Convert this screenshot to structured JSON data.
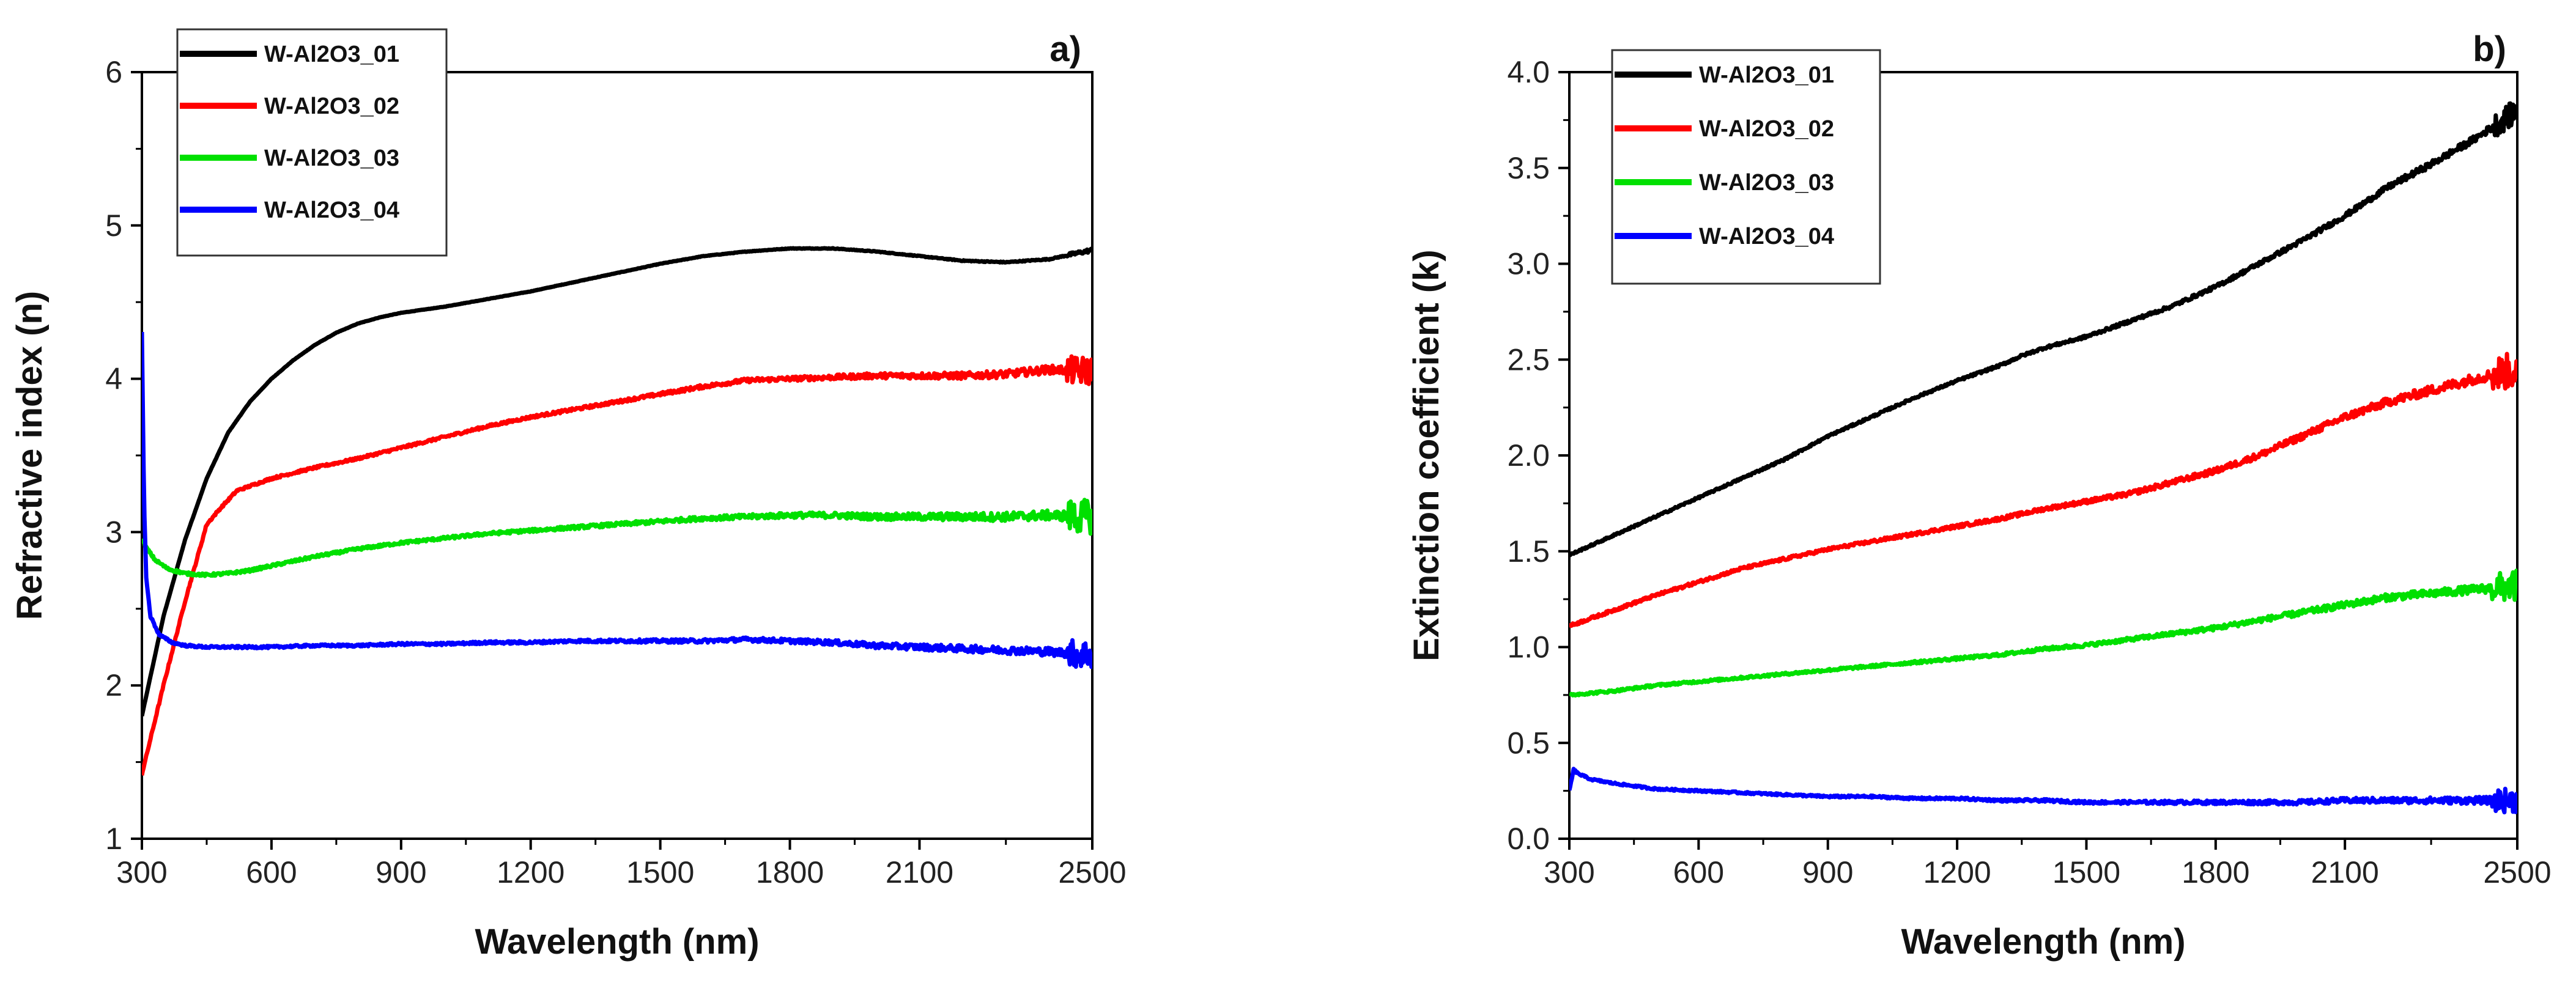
{
  "chart_data": [
    {
      "type": "line",
      "panel_label": "a)",
      "xlabel": "Wavelength (nm)",
      "ylabel": "Refractive index (n)",
      "xlim": [
        300,
        2500
      ],
      "ylim": [
        1,
        6
      ],
      "xticks": [
        "300",
        "600",
        "900",
        "1200",
        "1500",
        "1800",
        "2100",
        "2500"
      ],
      "yticks": [
        "1",
        "2",
        "3",
        "4",
        "5",
        "6"
      ],
      "legend_position": "top-left",
      "grid": false,
      "series": [
        {
          "name": "W-Al2O3_01",
          "color": "#000000",
          "x": [
            300,
            350,
            400,
            450,
            500,
            550,
            600,
            650,
            700,
            750,
            800,
            850,
            900,
            1000,
            1100,
            1200,
            1300,
            1400,
            1500,
            1600,
            1700,
            1800,
            1900,
            2000,
            2100,
            2200,
            2300,
            2400,
            2500
          ],
          "y": [
            1.8,
            2.45,
            2.95,
            3.35,
            3.65,
            3.85,
            4.0,
            4.12,
            4.22,
            4.3,
            4.36,
            4.4,
            4.43,
            4.47,
            4.52,
            4.57,
            4.63,
            4.69,
            4.75,
            4.8,
            4.83,
            4.85,
            4.85,
            4.83,
            4.8,
            4.77,
            4.76,
            4.78,
            4.84
          ]
        },
        {
          "name": "W-Al2O3_02",
          "color": "#ff0000",
          "x": [
            300,
            350,
            400,
            450,
            480,
            520,
            600,
            700,
            800,
            900,
            1000,
            1100,
            1200,
            1300,
            1400,
            1500,
            1600,
            1700,
            1800,
            1900,
            2000,
            2100,
            2200,
            2300,
            2400,
            2500
          ],
          "y": [
            1.42,
            2.0,
            2.55,
            3.05,
            3.15,
            3.27,
            3.35,
            3.42,
            3.48,
            3.55,
            3.62,
            3.69,
            3.75,
            3.8,
            3.85,
            3.9,
            3.95,
            3.99,
            4.0,
            4.01,
            4.02,
            4.02,
            4.02,
            4.03,
            4.06,
            4.05
          ]
        },
        {
          "name": "W-Al2O3_03",
          "color": "#00e000",
          "x": [
            300,
            310,
            330,
            360,
            400,
            450,
            500,
            550,
            600,
            700,
            800,
            900,
            1000,
            1100,
            1200,
            1300,
            1400,
            1500,
            1600,
            1700,
            1800,
            1900,
            2000,
            2100,
            2200,
            2300,
            2400,
            2500
          ],
          "y": [
            2.95,
            2.9,
            2.82,
            2.76,
            2.73,
            2.72,
            2.73,
            2.75,
            2.78,
            2.84,
            2.89,
            2.93,
            2.96,
            2.99,
            3.01,
            3.03,
            3.05,
            3.07,
            3.09,
            3.1,
            3.11,
            3.11,
            3.1,
            3.1,
            3.1,
            3.1,
            3.11,
            3.1
          ]
        },
        {
          "name": "W-Al2O3_04",
          "color": "#0000ff",
          "x": [
            300,
            305,
            310,
            320,
            340,
            370,
            400,
            450,
            500,
            600,
            700,
            800,
            900,
            1000,
            1100,
            1200,
            1300,
            1400,
            1500,
            1600,
            1700,
            1800,
            1900,
            2000,
            2100,
            2200,
            2300,
            2400,
            2500
          ],
          "y": [
            4.3,
            3.2,
            2.7,
            2.45,
            2.33,
            2.28,
            2.26,
            2.25,
            2.25,
            2.25,
            2.26,
            2.26,
            2.27,
            2.27,
            2.28,
            2.28,
            2.29,
            2.29,
            2.29,
            2.29,
            2.3,
            2.29,
            2.28,
            2.26,
            2.25,
            2.24,
            2.23,
            2.22,
            2.2
          ]
        }
      ]
    },
    {
      "type": "line",
      "panel_label": "b)",
      "xlabel": "Wavelength (nm)",
      "ylabel": "Extinction coefficient (k)",
      "xlim": [
        300,
        2500
      ],
      "ylim": [
        0,
        4
      ],
      "xticks": [
        "300",
        "600",
        "900",
        "1200",
        "1500",
        "1800",
        "2100",
        "2500"
      ],
      "yticks": [
        "0.0",
        "0.5",
        "1.0",
        "1.5",
        "2.0",
        "2.5",
        "3.0",
        "3.5",
        "4.0"
      ],
      "legend_position": "top-left",
      "grid": false,
      "series": [
        {
          "name": "W-Al2O3_01",
          "color": "#000000",
          "x": [
            300,
            400,
            500,
            600,
            700,
            800,
            900,
            1000,
            1100,
            1200,
            1300,
            1350,
            1400,
            1500,
            1600,
            1700,
            1800,
            1900,
            2000,
            2100,
            2200,
            2300,
            2400,
            2500
          ],
          "y": [
            1.48,
            1.58,
            1.68,
            1.78,
            1.88,
            1.98,
            2.1,
            2.2,
            2.3,
            2.39,
            2.47,
            2.52,
            2.56,
            2.62,
            2.7,
            2.78,
            2.88,
            3.0,
            3.12,
            3.25,
            3.4,
            3.52,
            3.65,
            3.8
          ]
        },
        {
          "name": "W-Al2O3_02",
          "color": "#ff0000",
          "x": [
            300,
            400,
            500,
            600,
            700,
            800,
            900,
            1000,
            1100,
            1200,
            1300,
            1400,
            1500,
            1600,
            1700,
            1800,
            1900,
            2000,
            2100,
            2200,
            2300,
            2400,
            2500
          ],
          "y": [
            1.11,
            1.19,
            1.27,
            1.34,
            1.41,
            1.46,
            1.51,
            1.55,
            1.59,
            1.63,
            1.67,
            1.72,
            1.76,
            1.8,
            1.86,
            1.92,
            2.0,
            2.1,
            2.2,
            2.28,
            2.34,
            2.4,
            2.45
          ]
        },
        {
          "name": "W-Al2O3_03",
          "color": "#00e000",
          "x": [
            300,
            400,
            500,
            600,
            700,
            800,
            900,
            1000,
            1100,
            1200,
            1300,
            1400,
            1500,
            1600,
            1700,
            1800,
            1900,
            2000,
            2100,
            2200,
            2300,
            2400,
            2500
          ],
          "y": [
            0.75,
            0.77,
            0.8,
            0.82,
            0.84,
            0.86,
            0.88,
            0.9,
            0.92,
            0.94,
            0.96,
            0.99,
            1.01,
            1.04,
            1.07,
            1.1,
            1.14,
            1.18,
            1.22,
            1.26,
            1.28,
            1.3,
            1.32
          ]
        },
        {
          "name": "W-Al2O3_04",
          "color": "#0000ff",
          "x": [
            300,
            310,
            320,
            350,
            400,
            500,
            600,
            700,
            800,
            900,
            1000,
            1100,
            1200,
            1300,
            1400,
            1500,
            1600,
            1700,
            1800,
            1900,
            2000,
            2100,
            2200,
            2300,
            2400,
            2500
          ],
          "y": [
            0.25,
            0.36,
            0.34,
            0.31,
            0.29,
            0.26,
            0.25,
            0.24,
            0.23,
            0.22,
            0.22,
            0.21,
            0.21,
            0.2,
            0.2,
            0.19,
            0.19,
            0.19,
            0.19,
            0.19,
            0.19,
            0.2,
            0.2,
            0.2,
            0.2,
            0.2
          ]
        }
      ]
    }
  ]
}
